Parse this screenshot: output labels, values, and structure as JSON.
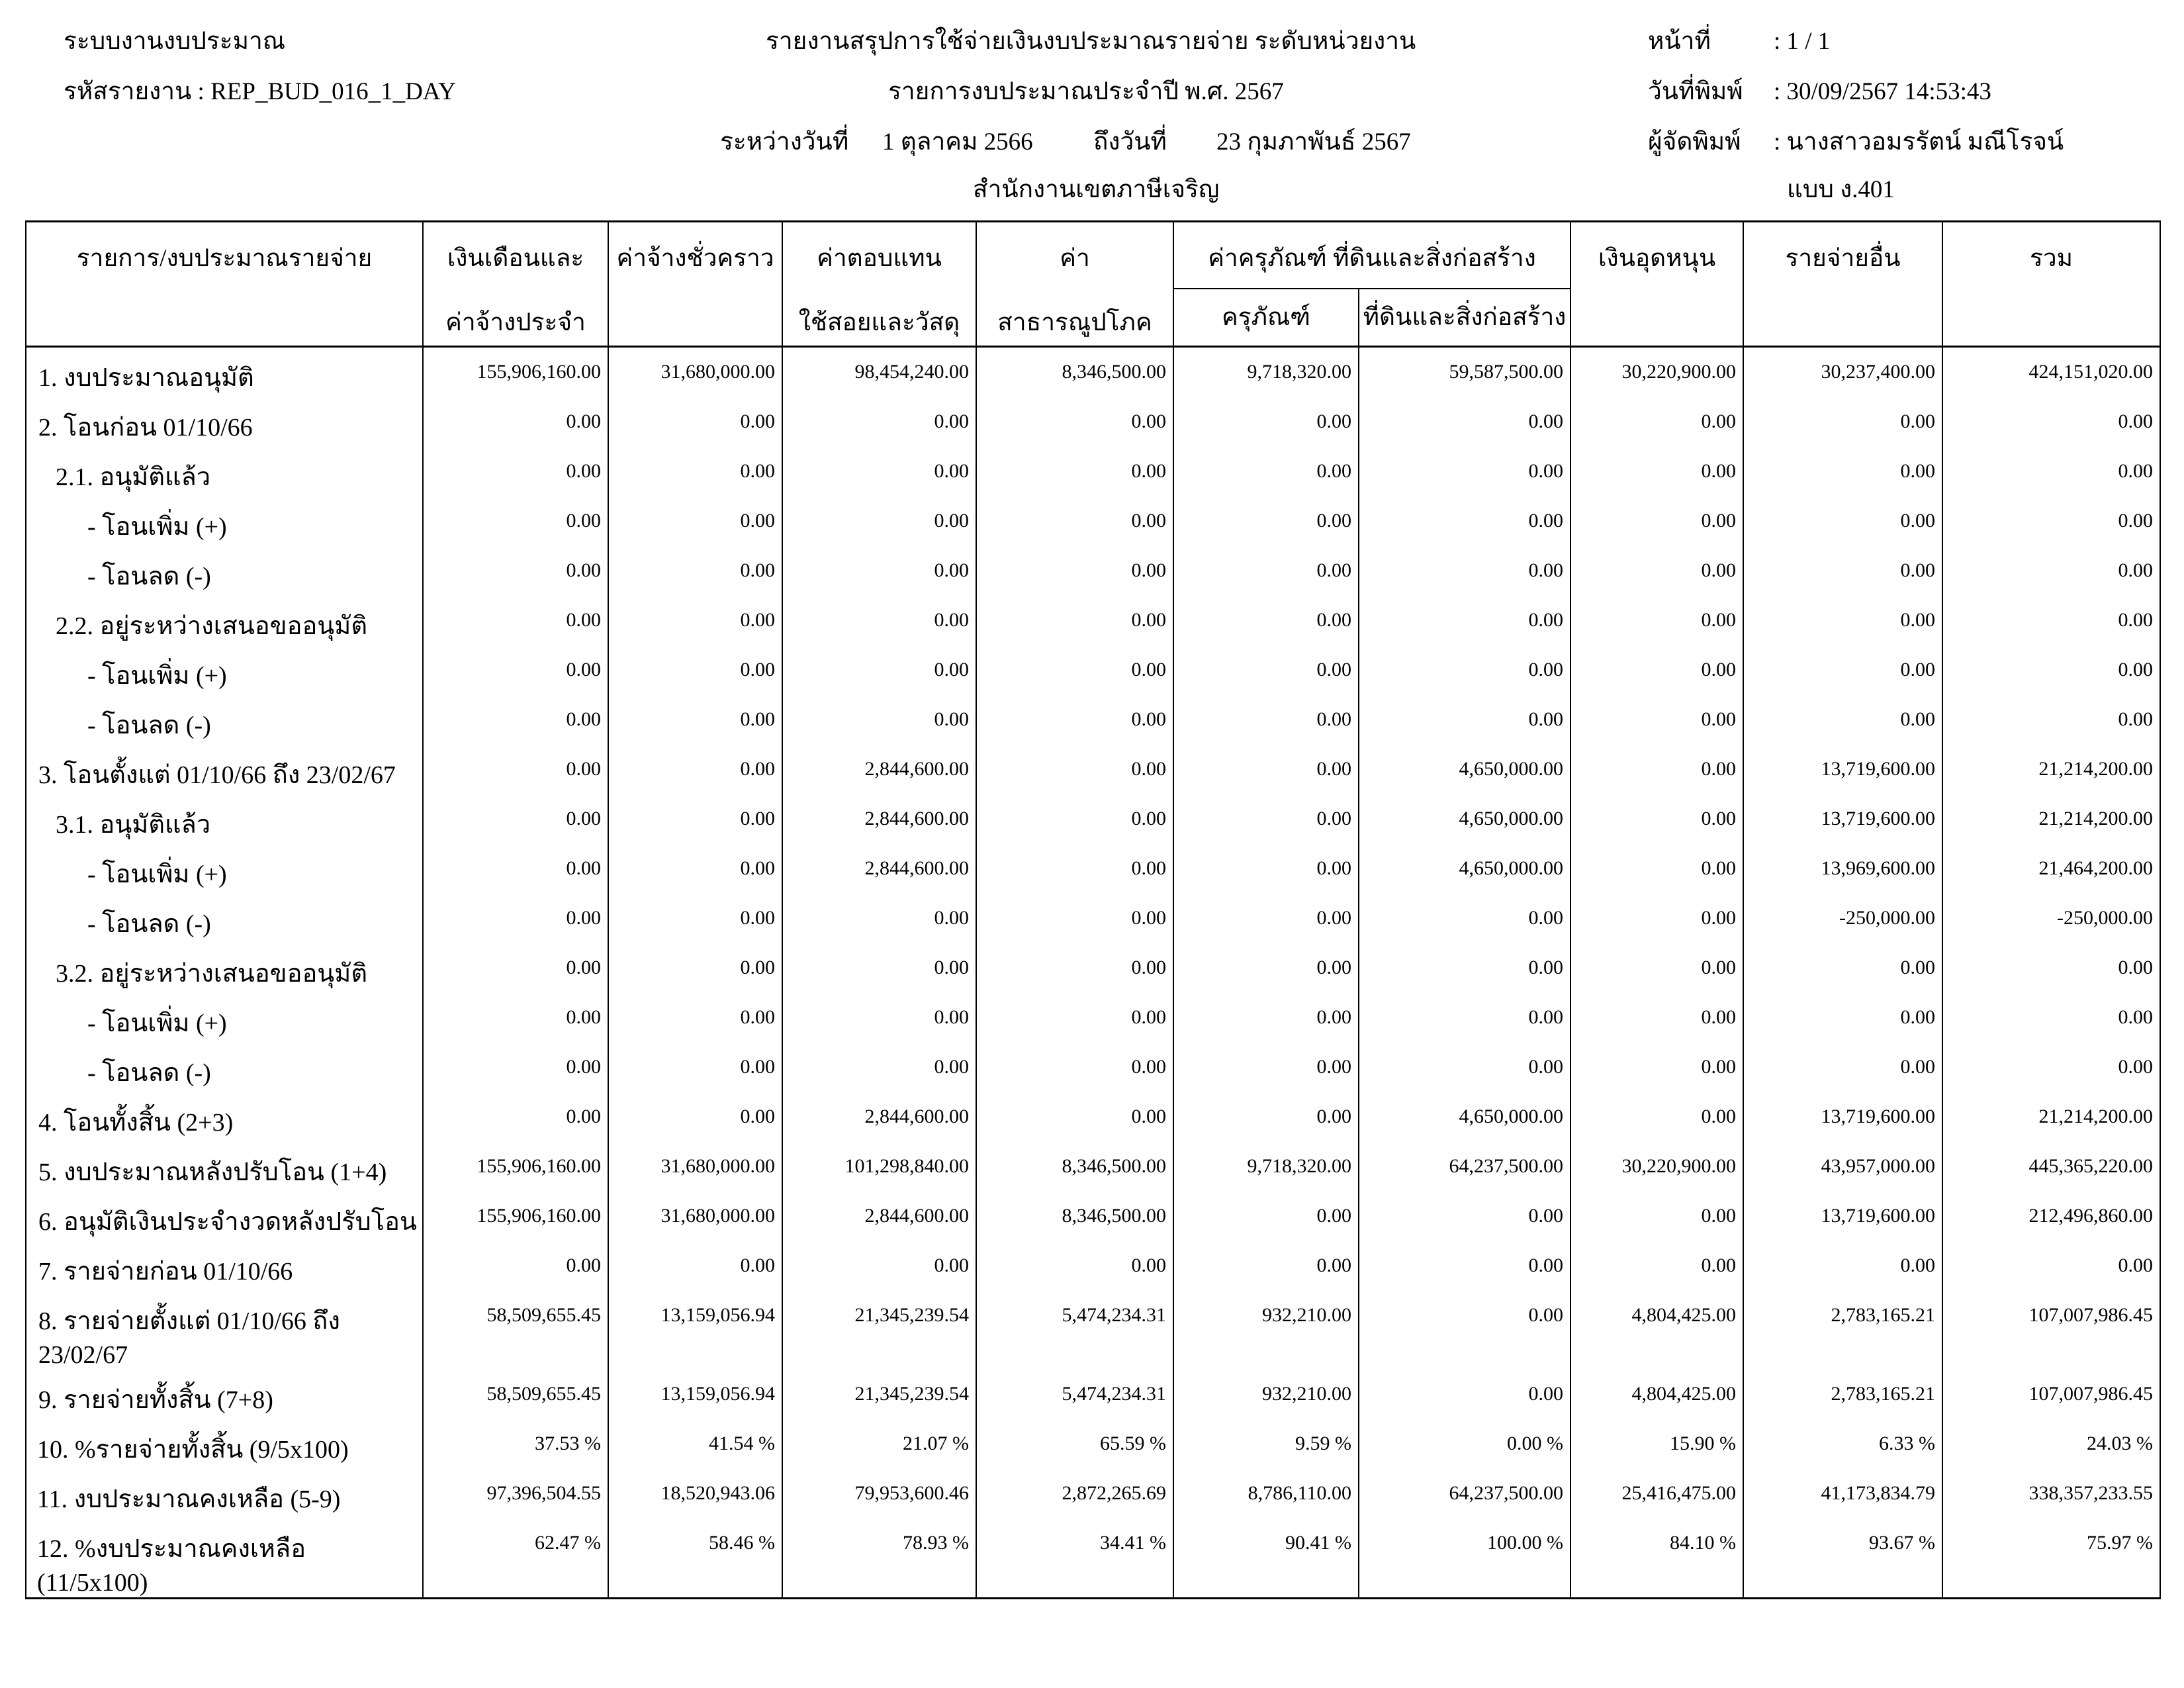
{
  "header": {
    "system": "ระบบงานงบประมาณ",
    "report_code_label": "รหัสรายงาน : REP_BUD_016_1_DAY",
    "title": "รายงานสรุปการใช้จ่ายเงินงบประมาณรายจ่าย ระดับหน่วยงาน",
    "subtitle": "รายการงบประมาณประจำปี พ.ศ. 2567",
    "from_label": "ระหว่างวันที่",
    "from_date": "1 ตุลาคม 2566",
    "to_label": "ถึงวันที่",
    "to_date": "23 กุมภาพันธ์ 2567",
    "office": "สำนักงานเขตภาษีเจริญ",
    "page_label": "หน้าที่",
    "page_value": ": 1 / 1",
    "print_date_label": "วันที่พิมพ์",
    "print_date_value": ": 30/09/2567 14:53:43",
    "printer_label": "ผู้จัดพิมพ์",
    "printer_value": ": นางสาวอมรรัตน์ มณีโรจน์",
    "form": "แบบ ง.401"
  },
  "columns": {
    "item": "รายการ/งบประมาณรายจ่าย",
    "salary_1": "เงินเดือนและ",
    "salary_2": "ค่าจ้างประจำ",
    "temp": "ค่าจ้างชั่วคราว",
    "comp_1": "ค่าตอบแทน",
    "comp_2": "ใช้สอยและวัสดุ",
    "util_1": "ค่า",
    "util_2": "สาธารณูปโภค",
    "capital": "ค่าครุภัณฑ์ ที่ดินและสิ่งก่อสร้าง",
    "equipment": "ครุภัณฑ์",
    "land": "ที่ดินและสิ่งก่อสร้าง",
    "subsidy": "เงินอุดหนุน",
    "other": "รายจ่ายอื่น",
    "total": "รวม"
  },
  "rows": [
    {
      "label": "1. งบประมาณอนุมัติ",
      "level": 1,
      "values": [
        "155,906,160.00",
        "31,680,000.00",
        "98,454,240.00",
        "8,346,500.00",
        "9,718,320.00",
        "59,587,500.00",
        "30,220,900.00",
        "30,237,400.00",
        "424,151,020.00"
      ]
    },
    {
      "label": "2. โอนก่อน 01/10/66",
      "level": 1,
      "values": [
        "0.00",
        "0.00",
        "0.00",
        "0.00",
        "0.00",
        "0.00",
        "0.00",
        "0.00",
        "0.00"
      ]
    },
    {
      "label": "2.1. อนุมัติแล้ว",
      "level": 2,
      "values": [
        "0.00",
        "0.00",
        "0.00",
        "0.00",
        "0.00",
        "0.00",
        "0.00",
        "0.00",
        "0.00"
      ]
    },
    {
      "label": "- โอนเพิ่ม (+)",
      "level": 3,
      "values": [
        "0.00",
        "0.00",
        "0.00",
        "0.00",
        "0.00",
        "0.00",
        "0.00",
        "0.00",
        "0.00"
      ]
    },
    {
      "label": "- โอนลด (-)",
      "level": 3,
      "values": [
        "0.00",
        "0.00",
        "0.00",
        "0.00",
        "0.00",
        "0.00",
        "0.00",
        "0.00",
        "0.00"
      ]
    },
    {
      "label": "2.2. อยู่ระหว่างเสนอขออนุมัติ",
      "level": 2,
      "values": [
        "0.00",
        "0.00",
        "0.00",
        "0.00",
        "0.00",
        "0.00",
        "0.00",
        "0.00",
        "0.00"
      ]
    },
    {
      "label": "- โอนเพิ่ม (+)",
      "level": 3,
      "values": [
        "0.00",
        "0.00",
        "0.00",
        "0.00",
        "0.00",
        "0.00",
        "0.00",
        "0.00",
        "0.00"
      ]
    },
    {
      "label": "- โอนลด (-)",
      "level": 3,
      "values": [
        "0.00",
        "0.00",
        "0.00",
        "0.00",
        "0.00",
        "0.00",
        "0.00",
        "0.00",
        "0.00"
      ]
    },
    {
      "label": "3. โอนตั้งแต่ 01/10/66 ถึง 23/02/67",
      "level": 1,
      "values": [
        "0.00",
        "0.00",
        "2,844,600.00",
        "0.00",
        "0.00",
        "4,650,000.00",
        "0.00",
        "13,719,600.00",
        "21,214,200.00"
      ]
    },
    {
      "label": "3.1. อนุมัติแล้ว",
      "level": 2,
      "values": [
        "0.00",
        "0.00",
        "2,844,600.00",
        "0.00",
        "0.00",
        "4,650,000.00",
        "0.00",
        "13,719,600.00",
        "21,214,200.00"
      ]
    },
    {
      "label": "- โอนเพิ่ม (+)",
      "level": 3,
      "values": [
        "0.00",
        "0.00",
        "2,844,600.00",
        "0.00",
        "0.00",
        "4,650,000.00",
        "0.00",
        "13,969,600.00",
        "21,464,200.00"
      ]
    },
    {
      "label": "- โอนลด (-)",
      "level": 3,
      "values": [
        "0.00",
        "0.00",
        "0.00",
        "0.00",
        "0.00",
        "0.00",
        "0.00",
        "-250,000.00",
        "-250,000.00"
      ]
    },
    {
      "label": "3.2. อยู่ระหว่างเสนอขออนุมัติ",
      "level": 2,
      "values": [
        "0.00",
        "0.00",
        "0.00",
        "0.00",
        "0.00",
        "0.00",
        "0.00",
        "0.00",
        "0.00"
      ]
    },
    {
      "label": "- โอนเพิ่ม (+)",
      "level": 3,
      "values": [
        "0.00",
        "0.00",
        "0.00",
        "0.00",
        "0.00",
        "0.00",
        "0.00",
        "0.00",
        "0.00"
      ]
    },
    {
      "label": "- โอนลด (-)",
      "level": 3,
      "values": [
        "0.00",
        "0.00",
        "0.00",
        "0.00",
        "0.00",
        "0.00",
        "0.00",
        "0.00",
        "0.00"
      ]
    },
    {
      "label": "4. โอนทั้งสิ้น (2+3)",
      "level": 1,
      "values": [
        "0.00",
        "0.00",
        "2,844,600.00",
        "0.00",
        "0.00",
        "4,650,000.00",
        "0.00",
        "13,719,600.00",
        "21,214,200.00"
      ]
    },
    {
      "label": "5. งบประมาณหลังปรับโอน (1+4)",
      "level": 1,
      "values": [
        "155,906,160.00",
        "31,680,000.00",
        "101,298,840.00",
        "8,346,500.00",
        "9,718,320.00",
        "64,237,500.00",
        "30,220,900.00",
        "43,957,000.00",
        "445,365,220.00"
      ]
    },
    {
      "label": "6. อนุมัติเงินประจำงวดหลังปรับโอน",
      "level": 1,
      "values": [
        "155,906,160.00",
        "31,680,000.00",
        "2,844,600.00",
        "8,346,500.00",
        "0.00",
        "0.00",
        "0.00",
        "13,719,600.00",
        "212,496,860.00"
      ]
    },
    {
      "label": "7. รายจ่ายก่อน 01/10/66",
      "level": 1,
      "values": [
        "0.00",
        "0.00",
        "0.00",
        "0.00",
        "0.00",
        "0.00",
        "0.00",
        "0.00",
        "0.00"
      ]
    },
    {
      "label": "8. รายจ่ายตั้งแต่ 01/10/66 ถึง 23/02/67",
      "level": 1,
      "values": [
        "58,509,655.45",
        "13,159,056.94",
        "21,345,239.54",
        "5,474,234.31",
        "932,210.00",
        "0.00",
        "4,804,425.00",
        "2,783,165.21",
        "107,007,986.45"
      ]
    },
    {
      "label": "9. รายจ่ายทั้งสิ้น (7+8)",
      "level": 1,
      "values": [
        "58,509,655.45",
        "13,159,056.94",
        "21,345,239.54",
        "5,474,234.31",
        "932,210.00",
        "0.00",
        "4,804,425.00",
        "2,783,165.21",
        "107,007,986.45"
      ]
    },
    {
      "label": "10. %รายจ่ายทั้งสิ้น (9/5x100)",
      "level": 0,
      "values": [
        "37.53 %",
        "41.54 %",
        "21.07 %",
        "65.59 %",
        "9.59 %",
        "0.00 %",
        "15.90 %",
        "6.33 %",
        "24.03 %"
      ]
    },
    {
      "label": "11. งบประมาณคงเหลือ (5-9)",
      "level": 0,
      "values": [
        "97,396,504.55",
        "18,520,943.06",
        "79,953,600.46",
        "2,872,265.69",
        "8,786,110.00",
        "64,237,500.00",
        "25,416,475.00",
        "41,173,834.79",
        "338,357,233.55"
      ]
    },
    {
      "label": "12. %งบประมาณคงเหลือ (11/5x100)",
      "level": 0,
      "values": [
        "62.47 %",
        "58.46 %",
        "78.93 %",
        "34.41 %",
        "90.41 %",
        "100.00 %",
        "84.10 %",
        "93.67 %",
        "75.97 %"
      ]
    }
  ]
}
